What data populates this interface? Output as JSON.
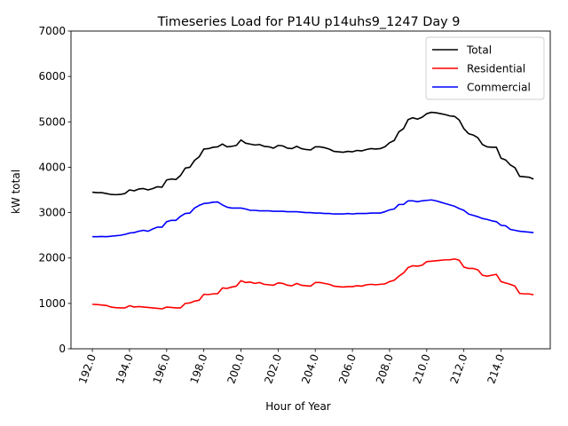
{
  "chart_data": {
    "type": "line",
    "title": "Timeseries Load for P14U p14uhs9_1247  Day 9",
    "xlabel": "Hour of Year",
    "ylabel": "kW total",
    "xlim": [
      190.85,
      216.65
    ],
    "ylim": [
      0,
      7000
    ],
    "xticks": [
      192.0,
      194.0,
      196.0,
      198.0,
      200.0,
      202.0,
      204.0,
      206.0,
      208.0,
      210.0,
      212.0,
      214.0
    ],
    "xtick_labels": [
      "192.0",
      "194.0",
      "196.0",
      "198.0",
      "200.0",
      "202.0",
      "204.0",
      "206.0",
      "208.0",
      "210.0",
      "212.0",
      "214.0"
    ],
    "yticks": [
      0,
      1000,
      2000,
      3000,
      4000,
      5000,
      6000,
      7000
    ],
    "ytick_labels": [
      "0",
      "1000",
      "2000",
      "3000",
      "4000",
      "5000",
      "6000",
      "7000"
    ],
    "grid": false,
    "legend_position": "top-right",
    "x": [
      192.0,
      192.25,
      192.5,
      192.75,
      193.0,
      193.25,
      193.5,
      193.75,
      194.0,
      194.25,
      194.5,
      194.75,
      195.0,
      195.25,
      195.5,
      195.75,
      196.0,
      196.25,
      196.5,
      196.75,
      197.0,
      197.25,
      197.5,
      197.75,
      198.0,
      198.25,
      198.5,
      198.75,
      199.0,
      199.25,
      199.5,
      199.75,
      200.0,
      200.25,
      200.5,
      200.75,
      201.0,
      201.25,
      201.5,
      201.75,
      202.0,
      202.25,
      202.5,
      202.75,
      203.0,
      203.25,
      203.5,
      203.75,
      204.0,
      204.25,
      204.5,
      204.75,
      205.0,
      205.25,
      205.5,
      205.75,
      206.0,
      206.25,
      206.5,
      206.75,
      207.0,
      207.25,
      207.5,
      207.75,
      208.0,
      208.25,
      208.5,
      208.75,
      209.0,
      209.25,
      209.5,
      209.75,
      210.0,
      210.25,
      210.5,
      210.75,
      211.0,
      211.25,
      211.5,
      211.75,
      212.0,
      212.25,
      212.5,
      212.75,
      213.0,
      213.25,
      213.5,
      213.75,
      214.0,
      214.25,
      214.5,
      214.75,
      215.0,
      215.25,
      215.5,
      215.75
    ],
    "series": [
      {
        "name": "Total",
        "color": "#000000",
        "values": [
          3450,
          3440,
          3440,
          3420,
          3400,
          3395,
          3400,
          3420,
          3500,
          3480,
          3520,
          3530,
          3500,
          3530,
          3570,
          3560,
          3720,
          3740,
          3730,
          3820,
          3980,
          4000,
          4150,
          4230,
          4400,
          4410,
          4440,
          4450,
          4510,
          4450,
          4460,
          4480,
          4600,
          4530,
          4510,
          4490,
          4500,
          4460,
          4450,
          4420,
          4480,
          4470,
          4420,
          4410,
          4460,
          4410,
          4390,
          4380,
          4450,
          4450,
          4430,
          4400,
          4350,
          4340,
          4330,
          4350,
          4340,
          4370,
          4360,
          4390,
          4410,
          4400,
          4410,
          4450,
          4540,
          4590,
          4780,
          4850,
          5050,
          5090,
          5060,
          5100,
          5180,
          5210,
          5200,
          5180,
          5160,
          5130,
          5120,
          5040,
          4850,
          4740,
          4710,
          4650,
          4500,
          4450,
          4440,
          4440,
          4200,
          4160,
          4050,
          3990,
          3800,
          3790,
          3780,
          3740
        ]
      },
      {
        "name": "Residential",
        "color": "#ff0000",
        "values": [
          980,
          975,
          965,
          955,
          920,
          905,
          900,
          900,
          950,
          920,
          930,
          920,
          910,
          900,
          890,
          880,
          920,
          910,
          900,
          900,
          1000,
          1010,
          1050,
          1070,
          1200,
          1195,
          1210,
          1215,
          1340,
          1330,
          1360,
          1380,
          1500,
          1460,
          1470,
          1440,
          1460,
          1420,
          1410,
          1400,
          1450,
          1440,
          1400,
          1390,
          1440,
          1400,
          1390,
          1380,
          1460,
          1460,
          1440,
          1420,
          1380,
          1370,
          1360,
          1370,
          1370,
          1390,
          1380,
          1410,
          1420,
          1410,
          1420,
          1430,
          1480,
          1510,
          1600,
          1670,
          1790,
          1830,
          1820,
          1840,
          1920,
          1930,
          1940,
          1950,
          1960,
          1960,
          1980,
          1950,
          1800,
          1770,
          1770,
          1740,
          1620,
          1600,
          1620,
          1640,
          1480,
          1450,
          1420,
          1380,
          1220,
          1210,
          1210,
          1190
        ]
      },
      {
        "name": "Commercial",
        "color": "#0000ff",
        "values": [
          2470,
          2470,
          2475,
          2470,
          2480,
          2490,
          2500,
          2520,
          2550,
          2560,
          2590,
          2610,
          2590,
          2640,
          2680,
          2680,
          2800,
          2830,
          2830,
          2920,
          2980,
          2990,
          3100,
          3160,
          3200,
          3210,
          3230,
          3235,
          3170,
          3120,
          3100,
          3100,
          3100,
          3080,
          3050,
          3050,
          3040,
          3040,
          3040,
          3030,
          3030,
          3030,
          3020,
          3020,
          3020,
          3010,
          3000,
          3000,
          2990,
          2990,
          2980,
          2980,
          2970,
          2970,
          2970,
          2980,
          2970,
          2980,
          2980,
          2980,
          2990,
          2990,
          2990,
          3020,
          3060,
          3080,
          3180,
          3180,
          3260,
          3260,
          3240,
          3260,
          3270,
          3280,
          3260,
          3230,
          3200,
          3170,
          3140,
          3090,
          3050,
          2970,
          2940,
          2910,
          2870,
          2850,
          2820,
          2800,
          2720,
          2710,
          2630,
          2610,
          2590,
          2580,
          2570,
          2560
        ]
      }
    ]
  }
}
